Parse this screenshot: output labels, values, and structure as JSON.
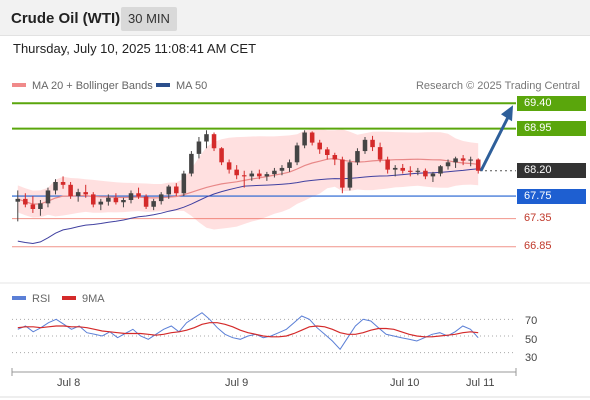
{
  "header": {
    "title": "Crude Oil (WTI)",
    "interval": "30 MIN"
  },
  "datetime": "Thursday, July 10, 2025 11:08:41 AM CET",
  "legend": {
    "bollinger": "MA 20 + Bollinger Bands",
    "ma50": "MA 50",
    "credit": "Research © 2025 Trading Central"
  },
  "colors": {
    "resistance": "#5aa60c",
    "support": "#1e5fd1",
    "current": "#333333",
    "weak": "#e74c3c",
    "band": "#ffd6d6",
    "ma20": "#e88888",
    "ma50": "#4040a0",
    "up_candle": "#444444",
    "down_candle": "#d42a2a",
    "arrow": "#2e5f9a",
    "rsi": "#5b7fd6",
    "rsi_ma": "#d42a2a"
  },
  "levels": [
    {
      "value": "69.40",
      "kind": "resistance"
    },
    {
      "value": "68.95",
      "kind": "resistance"
    },
    {
      "value": "68.20",
      "kind": "current"
    },
    {
      "value": "67.75",
      "kind": "support"
    },
    {
      "value": "67.35",
      "kind": "weak"
    },
    {
      "value": "66.85",
      "kind": "weak"
    }
  ],
  "rsi_panel": {
    "legend_rsi": "RSI",
    "legend_ma": "9MA",
    "levels": [
      "70",
      "50",
      "30"
    ]
  },
  "x_axis": [
    "Jul 8",
    "Jul 9",
    "Jul 10",
    "Jul 11"
  ],
  "chart_data": {
    "type": "candlestick",
    "title": "Crude Oil (WTI)",
    "interval": "30 MIN",
    "ylim": [
      66.4,
      69.6
    ],
    "levels": [
      69.4,
      68.95,
      68.2,
      67.75,
      67.35,
      66.85
    ],
    "candles": [
      [
        67.65,
        67.85,
        67.3,
        67.7
      ],
      [
        67.7,
        67.8,
        67.55,
        67.6
      ],
      [
        67.6,
        67.75,
        67.45,
        67.52
      ],
      [
        67.52,
        67.68,
        67.4,
        67.62
      ],
      [
        67.62,
        67.9,
        67.55,
        67.85
      ],
      [
        67.85,
        68.05,
        67.78,
        68.0
      ],
      [
        68.0,
        68.1,
        67.88,
        67.95
      ],
      [
        67.95,
        68.0,
        67.7,
        67.75
      ],
      [
        67.75,
        67.88,
        67.65,
        67.82
      ],
      [
        67.82,
        67.95,
        67.72,
        67.78
      ],
      [
        67.78,
        67.82,
        67.55,
        67.6
      ],
      [
        67.6,
        67.7,
        67.5,
        67.65
      ],
      [
        67.65,
        67.78,
        67.58,
        67.72
      ],
      [
        67.72,
        67.8,
        67.6,
        67.64
      ],
      [
        67.64,
        67.72,
        67.55,
        67.68
      ],
      [
        67.68,
        67.85,
        67.62,
        67.8
      ],
      [
        67.8,
        67.9,
        67.7,
        67.74
      ],
      [
        67.74,
        67.78,
        67.52,
        67.56
      ],
      [
        67.56,
        67.7,
        67.5,
        67.66
      ],
      [
        67.66,
        67.82,
        67.6,
        67.78
      ],
      [
        67.78,
        67.95,
        67.7,
        67.92
      ],
      [
        67.92,
        67.98,
        67.75,
        67.8
      ],
      [
        67.8,
        68.2,
        67.75,
        68.15
      ],
      [
        68.15,
        68.55,
        68.1,
        68.5
      ],
      [
        68.5,
        68.8,
        68.42,
        68.72
      ],
      [
        68.72,
        68.92,
        68.6,
        68.85
      ],
      [
        68.85,
        68.88,
        68.55,
        68.6
      ],
      [
        68.6,
        68.62,
        68.3,
        68.35
      ],
      [
        68.35,
        68.4,
        68.15,
        68.22
      ],
      [
        68.22,
        68.3,
        68.05,
        68.12
      ],
      [
        68.12,
        68.2,
        67.9,
        68.1
      ],
      [
        68.1,
        68.2,
        68.02,
        68.15
      ],
      [
        68.15,
        68.22,
        68.05,
        68.1
      ],
      [
        68.1,
        68.18,
        68.02,
        68.14
      ],
      [
        68.14,
        68.25,
        68.08,
        68.2
      ],
      [
        68.2,
        68.3,
        68.12,
        68.25
      ],
      [
        68.25,
        68.4,
        68.18,
        68.35
      ],
      [
        68.35,
        68.7,
        68.3,
        68.65
      ],
      [
        68.65,
        68.92,
        68.6,
        68.88
      ],
      [
        68.88,
        68.9,
        68.65,
        68.7
      ],
      [
        68.7,
        68.75,
        68.5,
        68.58
      ],
      [
        68.58,
        68.62,
        68.4,
        68.48
      ],
      [
        68.48,
        68.52,
        68.3,
        68.4
      ],
      [
        68.4,
        68.45,
        67.8,
        67.9
      ],
      [
        67.9,
        68.4,
        67.85,
        68.35
      ],
      [
        68.35,
        68.6,
        68.3,
        68.55
      ],
      [
        68.55,
        68.8,
        68.5,
        68.75
      ],
      [
        68.75,
        68.82,
        68.55,
        68.62
      ],
      [
        68.62,
        68.7,
        68.35,
        68.4
      ],
      [
        68.4,
        68.45,
        68.15,
        68.22
      ],
      [
        68.22,
        68.3,
        68.1,
        68.25
      ],
      [
        68.25,
        68.32,
        68.15,
        68.2
      ],
      [
        68.2,
        68.28,
        68.1,
        68.18
      ],
      [
        68.18,
        68.25,
        68.12,
        68.2
      ],
      [
        68.2,
        68.24,
        68.05,
        68.1
      ],
      [
        68.1,
        68.18,
        68.0,
        68.15
      ],
      [
        68.15,
        68.3,
        68.1,
        68.28
      ],
      [
        68.28,
        68.4,
        68.22,
        68.35
      ],
      [
        68.35,
        68.45,
        68.25,
        68.42
      ],
      [
        68.42,
        68.48,
        68.3,
        68.38
      ],
      [
        68.38,
        68.45,
        68.28,
        68.4
      ],
      [
        68.4,
        68.42,
        68.15,
        68.2
      ]
    ],
    "rsi": [
      58,
      62,
      55,
      60,
      66,
      70,
      64,
      58,
      62,
      54,
      52,
      50,
      55,
      48,
      53,
      58,
      50,
      46,
      52,
      58,
      62,
      55,
      66,
      72,
      78,
      70,
      60,
      52,
      48,
      46,
      50,
      52,
      48,
      50,
      54,
      58,
      66,
      74,
      70,
      60,
      52,
      44,
      34,
      48,
      62,
      70,
      68,
      60,
      52,
      50,
      48,
      46,
      44,
      48,
      52,
      54,
      50,
      55,
      62,
      58,
      48
    ],
    "rsi_ma": [
      60,
      61,
      61,
      60,
      61,
      62,
      62,
      61,
      61,
      60,
      58,
      56,
      55,
      54,
      53,
      53,
      53,
      52,
      51,
      52,
      54,
      55,
      57,
      60,
      64,
      66,
      66,
      64,
      61,
      57,
      54,
      52,
      50,
      49,
      49,
      50,
      53,
      57,
      61,
      62,
      61,
      58,
      54,
      52,
      52,
      54,
      57,
      59,
      59,
      58,
      55,
      52,
      50,
      49,
      49,
      50,
      51,
      52,
      54,
      55,
      54
    ]
  }
}
